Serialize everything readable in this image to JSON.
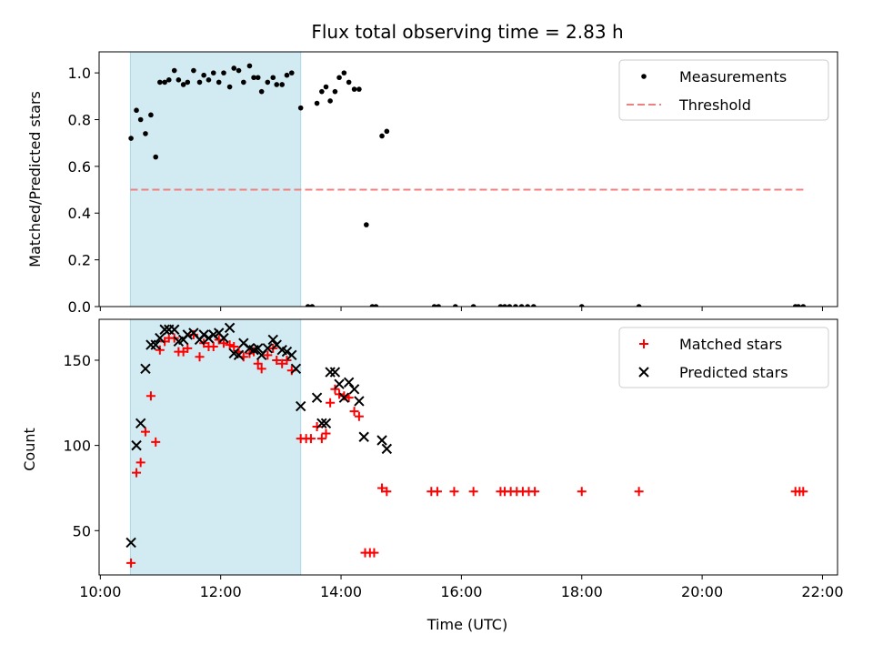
{
  "chart_data": [
    {
      "type": "scatter",
      "title": "Flux total observing time = 2.83 h",
      "xlabel": "",
      "ylabel": "Matched/Predicted stars",
      "xlim": [
        9.98,
        22.25
      ],
      "ylim": [
        0.0,
        1.09
      ],
      "yticks": [
        "0.0",
        "0.2",
        "0.4",
        "0.6",
        "0.8",
        "1.0"
      ],
      "shaded_span_hours": [
        10.5,
        13.33
      ],
      "shade_color": "#add8e6",
      "legend_position": "top-right",
      "series": [
        {
          "name": "Measurements",
          "marker": "dot",
          "color": "#000000",
          "points": [
            [
              10.51,
              0.72
            ],
            [
              10.6,
              0.84
            ],
            [
              10.67,
              0.8
            ],
            [
              10.75,
              0.74
            ],
            [
              10.84,
              0.82
            ],
            [
              10.92,
              0.64
            ],
            [
              10.99,
              0.96
            ],
            [
              11.07,
              0.96
            ],
            [
              11.14,
              0.97
            ],
            [
              11.23,
              1.01
            ],
            [
              11.3,
              0.97
            ],
            [
              11.38,
              0.95
            ],
            [
              11.45,
              0.96
            ],
            [
              11.55,
              1.01
            ],
            [
              11.65,
              0.96
            ],
            [
              11.72,
              0.99
            ],
            [
              11.8,
              0.97
            ],
            [
              11.88,
              1.0
            ],
            [
              11.97,
              0.96
            ],
            [
              12.05,
              1.0
            ],
            [
              12.15,
              0.94
            ],
            [
              12.22,
              1.02
            ],
            [
              12.3,
              1.01
            ],
            [
              12.38,
              0.96
            ],
            [
              12.48,
              1.03
            ],
            [
              12.55,
              0.98
            ],
            [
              12.62,
              0.98
            ],
            [
              12.68,
              0.92
            ],
            [
              12.78,
              0.96
            ],
            [
              12.87,
              0.98
            ],
            [
              12.93,
              0.95
            ],
            [
              13.02,
              0.95
            ],
            [
              13.1,
              0.99
            ],
            [
              13.18,
              1.0
            ],
            [
              13.33,
              0.85
            ],
            [
              13.45,
              0.0
            ],
            [
              13.52,
              0.0
            ],
            [
              13.6,
              0.87
            ],
            [
              13.68,
              0.92
            ],
            [
              13.75,
              0.94
            ],
            [
              13.82,
              0.88
            ],
            [
              13.9,
              0.92
            ],
            [
              13.97,
              0.98
            ],
            [
              14.05,
              1.0
            ],
            [
              14.13,
              0.96
            ],
            [
              14.22,
              0.93
            ],
            [
              14.3,
              0.93
            ],
            [
              14.42,
              0.35
            ],
            [
              14.52,
              0.0
            ],
            [
              14.58,
              0.0
            ],
            [
              14.68,
              0.73
            ],
            [
              14.76,
              0.75
            ],
            [
              15.55,
              0.0
            ],
            [
              15.62,
              0.0
            ],
            [
              15.9,
              0.0
            ],
            [
              16.2,
              0.0
            ],
            [
              16.65,
              0.0
            ],
            [
              16.72,
              0.0
            ],
            [
              16.8,
              0.0
            ],
            [
              16.9,
              0.0
            ],
            [
              17.0,
              0.0
            ],
            [
              17.1,
              0.0
            ],
            [
              17.2,
              0.0
            ],
            [
              18.0,
              0.0
            ],
            [
              18.95,
              0.0
            ],
            [
              21.55,
              0.0
            ],
            [
              21.6,
              0.0
            ],
            [
              21.68,
              0.0
            ]
          ]
        },
        {
          "name": "Threshold",
          "marker": "dashed-line",
          "color": "#f08080",
          "points": [
            [
              10.5,
              0.5
            ],
            [
              21.7,
              0.5
            ]
          ]
        }
      ]
    },
    {
      "type": "scatter",
      "title": "",
      "xlabel": "Time (UTC)",
      "ylabel": "Count",
      "xlim": [
        9.98,
        22.25
      ],
      "ylim": [
        24,
        174
      ],
      "yticks": [
        "50",
        "100",
        "150"
      ],
      "xticks": [
        "10:00",
        "12:00",
        "14:00",
        "16:00",
        "18:00",
        "20:00",
        "22:00"
      ],
      "shaded_span_hours": [
        10.5,
        13.33
      ],
      "shade_color": "#add8e6",
      "legend_position": "top-right",
      "series": [
        {
          "name": "Matched stars",
          "marker": "plus",
          "color": "#ff0000",
          "points": [
            [
              10.51,
              31
            ],
            [
              10.6,
              84
            ],
            [
              10.67,
              90
            ],
            [
              10.75,
              108
            ],
            [
              10.84,
              129
            ],
            [
              10.92,
              102
            ],
            [
              10.99,
              156
            ],
            [
              11.07,
              161
            ],
            [
              11.14,
              163
            ],
            [
              11.23,
              163
            ],
            [
              11.3,
              155
            ],
            [
              11.38,
              155
            ],
            [
              11.45,
              157
            ],
            [
              11.55,
              165
            ],
            [
              11.65,
              152
            ],
            [
              11.72,
              160
            ],
            [
              11.8,
              158
            ],
            [
              11.88,
              158
            ],
            [
              11.97,
              162
            ],
            [
              12.05,
              160
            ],
            [
              12.15,
              159
            ],
            [
              12.22,
              158
            ],
            [
              12.3,
              155
            ],
            [
              12.38,
              152
            ],
            [
              12.48,
              154
            ],
            [
              12.55,
              155
            ],
            [
              12.62,
              148
            ],
            [
              12.68,
              145
            ],
            [
              12.78,
              153
            ],
            [
              12.87,
              157
            ],
            [
              12.93,
              150
            ],
            [
              13.02,
              148
            ],
            [
              13.1,
              150
            ],
            [
              13.18,
              144
            ],
            [
              13.33,
              104
            ],
            [
              13.42,
              104
            ],
            [
              13.5,
              104
            ],
            [
              13.6,
              111
            ],
            [
              13.68,
              104
            ],
            [
              13.75,
              107
            ],
            [
              13.82,
              125
            ],
            [
              13.9,
              133
            ],
            [
              13.97,
              130
            ],
            [
              14.05,
              129
            ],
            [
              14.13,
              128
            ],
            [
              14.22,
              120
            ],
            [
              14.3,
              117
            ],
            [
              14.4,
              37
            ],
            [
              14.48,
              37
            ],
            [
              14.55,
              37
            ],
            [
              14.68,
              75
            ],
            [
              14.76,
              73
            ],
            [
              15.5,
              73
            ],
            [
              15.6,
              73
            ],
            [
              15.88,
              73
            ],
            [
              16.2,
              73
            ],
            [
              16.65,
              73
            ],
            [
              16.72,
              73
            ],
            [
              16.82,
              73
            ],
            [
              16.92,
              73
            ],
            [
              17.02,
              73
            ],
            [
              17.12,
              73
            ],
            [
              17.22,
              73
            ],
            [
              18.0,
              73
            ],
            [
              18.95,
              73
            ],
            [
              21.55,
              73
            ],
            [
              21.62,
              73
            ],
            [
              21.68,
              73
            ]
          ]
        },
        {
          "name": "Predicted stars",
          "marker": "x",
          "color": "#000000",
          "points": [
            [
              10.51,
              43
            ],
            [
              10.6,
              100
            ],
            [
              10.67,
              113
            ],
            [
              10.75,
              145
            ],
            [
              10.84,
              159
            ],
            [
              10.92,
              159
            ],
            [
              10.99,
              163
            ],
            [
              11.07,
              168
            ],
            [
              11.14,
              168
            ],
            [
              11.23,
              168
            ],
            [
              11.3,
              161
            ],
            [
              11.38,
              162
            ],
            [
              11.45,
              165
            ],
            [
              11.55,
              166
            ],
            [
              11.65,
              162
            ],
            [
              11.72,
              165
            ],
            [
              11.8,
              163
            ],
            [
              11.88,
              165
            ],
            [
              11.97,
              166
            ],
            [
              12.05,
              163
            ],
            [
              12.15,
              169
            ],
            [
              12.22,
              154
            ],
            [
              12.3,
              153
            ],
            [
              12.38,
              160
            ],
            [
              12.48,
              157
            ],
            [
              12.55,
              156
            ],
            [
              12.62,
              157
            ],
            [
              12.68,
              153
            ],
            [
              12.78,
              157
            ],
            [
              12.87,
              162
            ],
            [
              12.93,
              159
            ],
            [
              13.02,
              156
            ],
            [
              13.1,
              155
            ],
            [
              13.18,
              153
            ],
            [
              13.25,
              145
            ],
            [
              13.33,
              123
            ],
            [
              13.6,
              128
            ],
            [
              13.68,
              113
            ],
            [
              13.75,
              113
            ],
            [
              13.82,
              143
            ],
            [
              13.9,
              143
            ],
            [
              13.97,
              136
            ],
            [
              14.05,
              128
            ],
            [
              14.13,
              137
            ],
            [
              14.22,
              133
            ],
            [
              14.3,
              126
            ],
            [
              14.38,
              105
            ],
            [
              14.68,
              103
            ],
            [
              14.76,
              98
            ]
          ]
        }
      ]
    }
  ]
}
